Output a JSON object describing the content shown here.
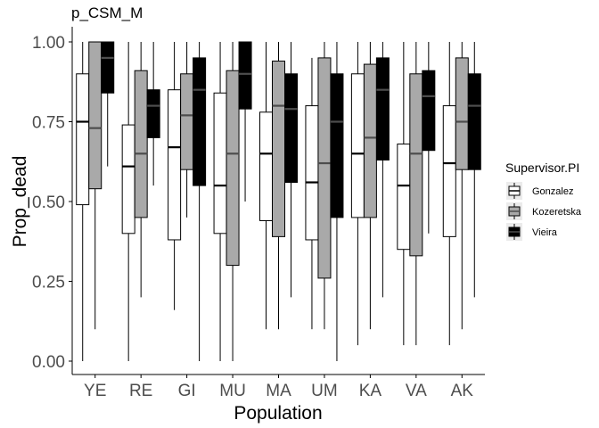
{
  "chart_data": {
    "type": "boxplot",
    "title": "p_CSM_M",
    "xlabel": "Population",
    "ylabel": "Prop_dead",
    "ylim": [
      0,
      1
    ],
    "yticks": [
      "0.00",
      "0.25",
      "0.50",
      "0.75",
      "1.00"
    ],
    "grid": false,
    "legend_position": "right",
    "legend_title": "Supervisor.PI",
    "categories": [
      "YE",
      "RE",
      "GI",
      "MU",
      "MA",
      "UM",
      "KA",
      "VA",
      "AK"
    ],
    "series": [
      {
        "name": "Gonzalez",
        "color": "#ffffff",
        "median_color": "#000000",
        "boxes": [
          {
            "min": 0.0,
            "q1": 0.49,
            "median": 0.75,
            "q3": 0.9,
            "max": 1.0
          },
          {
            "min": 0.0,
            "q1": 0.4,
            "median": 0.61,
            "q3": 0.74,
            "max": 1.0
          },
          {
            "min": 0.16,
            "q1": 0.38,
            "median": 0.67,
            "q3": 0.85,
            "max": 1.0
          },
          {
            "min": 0.0,
            "q1": 0.4,
            "median": 0.55,
            "q3": 0.84,
            "max": 1.0
          },
          {
            "min": 0.1,
            "q1": 0.44,
            "median": 0.65,
            "q3": 0.78,
            "max": 1.0
          },
          {
            "min": 0.1,
            "q1": 0.38,
            "median": 0.56,
            "q3": 0.8,
            "max": 0.95
          },
          {
            "min": 0.05,
            "q1": 0.45,
            "median": 0.65,
            "q3": 0.9,
            "max": 1.0
          },
          {
            "min": 0.05,
            "q1": 0.35,
            "median": 0.55,
            "q3": 0.68,
            "max": 1.0
          },
          {
            "min": 0.05,
            "q1": 0.39,
            "median": 0.62,
            "q3": 0.8,
            "max": 1.0
          }
        ]
      },
      {
        "name": "Kozeretska",
        "color": "#a9a9a9",
        "median_color": "#4d4d4d",
        "boxes": [
          {
            "min": 0.1,
            "q1": 0.54,
            "median": 0.73,
            "q3": 1.0,
            "max": 1.0
          },
          {
            "min": 0.2,
            "q1": 0.45,
            "median": 0.65,
            "q3": 0.91,
            "max": 1.0
          },
          {
            "min": 0.45,
            "q1": 0.6,
            "median": 0.77,
            "q3": 0.9,
            "max": 1.0
          },
          {
            "min": 0.0,
            "q1": 0.3,
            "median": 0.65,
            "q3": 0.91,
            "max": 1.0
          },
          {
            "min": 0.1,
            "q1": 0.39,
            "median": 0.8,
            "q3": 0.94,
            "max": 1.0
          },
          {
            "min": 0.1,
            "q1": 0.26,
            "median": 0.62,
            "q3": 0.95,
            "max": 1.0
          },
          {
            "min": 0.1,
            "q1": 0.45,
            "median": 0.7,
            "q3": 0.93,
            "max": 1.0
          },
          {
            "min": 0.05,
            "q1": 0.33,
            "median": 0.65,
            "q3": 0.9,
            "max": 1.0
          },
          {
            "min": 0.1,
            "q1": 0.6,
            "median": 0.75,
            "q3": 0.95,
            "max": 1.0
          }
        ]
      },
      {
        "name": "Vieira",
        "color": "#000000",
        "median_color": "#4d4d4d",
        "boxes": [
          {
            "min": 0.61,
            "q1": 0.84,
            "median": 0.95,
            "q3": 1.0,
            "max": 1.0
          },
          {
            "min": 0.55,
            "q1": 0.7,
            "median": 0.8,
            "q3": 0.85,
            "max": 1.0
          },
          {
            "min": 0.0,
            "q1": 0.55,
            "median": 0.85,
            "q3": 0.95,
            "max": 1.0
          },
          {
            "min": 0.5,
            "q1": 0.79,
            "median": 0.9,
            "q3": 1.0,
            "max": 1.0
          },
          {
            "min": 0.2,
            "q1": 0.56,
            "median": 0.79,
            "q3": 0.9,
            "max": 1.0
          },
          {
            "min": 0.0,
            "q1": 0.45,
            "median": 0.75,
            "q3": 0.9,
            "max": 1.0
          },
          {
            "min": 0.2,
            "q1": 0.63,
            "median": 0.85,
            "q3": 0.95,
            "max": 1.0
          },
          {
            "min": 0.4,
            "q1": 0.66,
            "median": 0.83,
            "q3": 0.91,
            "max": 1.0
          },
          {
            "min": 0.2,
            "q1": 0.6,
            "median": 0.8,
            "q3": 0.9,
            "max": 1.0
          }
        ]
      }
    ]
  }
}
